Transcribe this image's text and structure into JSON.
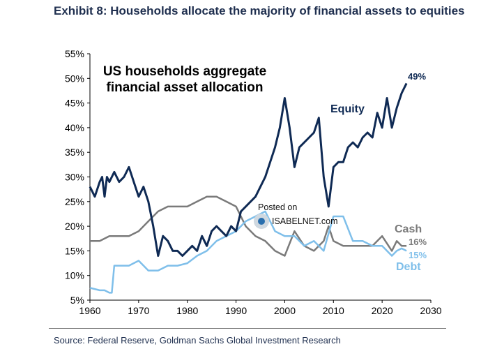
{
  "title": "Exhibit 8: Households allocate the majority of financial assets to equities",
  "source": "Source: Federal Reserve, Goldman Sachs Global Investment Research",
  "watermark": {
    "line1": "Posted on",
    "line2": "ISABELNET.com"
  },
  "colors": {
    "equity": "#0f2a54",
    "cash": "#7a7a7a",
    "debt": "#7fbfea",
    "title": "#1f2f4f"
  },
  "chart_data": {
    "type": "line",
    "title": "US households aggregate financial asset allocation",
    "title_lines": [
      "US households aggregate",
      "financial asset allocation"
    ],
    "xlabel": "",
    "ylabel": "",
    "xlim": [
      1960,
      2030
    ],
    "ylim": [
      5,
      55
    ],
    "x_ticks": [
      1960,
      1970,
      1980,
      1990,
      2000,
      2010,
      2020,
      2030
    ],
    "x_tick_labels": [
      "1960",
      "1970",
      "1980",
      "1990",
      "2000",
      "2010",
      "2020",
      "2030"
    ],
    "y_ticks": [
      5,
      10,
      15,
      20,
      25,
      30,
      35,
      40,
      45,
      50,
      55
    ],
    "y_tick_labels": [
      "5%",
      "10%",
      "15%",
      "20%",
      "25%",
      "30%",
      "35%",
      "40%",
      "45%",
      "50%",
      "55%"
    ],
    "grid": false,
    "series": [
      {
        "name": "Equity",
        "end_label": "49%",
        "color": "#0f2a54",
        "x": [
          1960,
          1961,
          1962,
          1962.5,
          1963,
          1963.5,
          1964,
          1965,
          1966,
          1967,
          1968,
          1969,
          1970,
          1971,
          1972,
          1973,
          1974,
          1975,
          1976,
          1977,
          1978,
          1979,
          1980,
          1981,
          1982,
          1983,
          1984,
          1985,
          1986,
          1987,
          1988,
          1989,
          1990,
          1991,
          1992,
          1993,
          1994,
          1995,
          1996,
          1997,
          1998,
          1999,
          2000,
          2001,
          2002,
          2003,
          2004,
          2005,
          2006,
          2007,
          2008,
          2009,
          2010,
          2011,
          2012,
          2013,
          2014,
          2015,
          2016,
          2017,
          2018,
          2019,
          2020,
          2021,
          2022,
          2023,
          2024,
          2025
        ],
        "values": [
          28,
          26,
          29,
          30,
          26,
          30,
          29,
          31,
          29,
          30,
          32,
          29,
          26,
          28,
          25,
          20,
          14,
          18,
          17,
          15,
          15,
          14,
          15,
          16,
          15,
          18,
          16,
          19,
          20,
          19,
          18,
          20,
          19,
          23,
          24,
          25,
          26,
          28,
          30,
          33,
          36,
          40,
          46,
          40,
          32,
          36,
          37,
          38,
          39,
          42,
          30,
          24,
          32,
          33,
          33,
          36,
          37,
          36,
          38,
          39,
          38,
          43,
          40,
          46,
          40,
          44,
          47,
          49
        ]
      },
      {
        "name": "Cash",
        "end_label": "16%",
        "color": "#7a7a7a",
        "x": [
          1960,
          1962,
          1964,
          1966,
          1968,
          1970,
          1972,
          1974,
          1976,
          1978,
          1980,
          1982,
          1984,
          1986,
          1988,
          1990,
          1992,
          1994,
          1996,
          1998,
          2000,
          2002,
          2004,
          2006,
          2008,
          2009,
          2010,
          2012,
          2014,
          2016,
          2018,
          2020,
          2022,
          2023,
          2024,
          2025
        ],
        "values": [
          17,
          17,
          18,
          18,
          18,
          19,
          21,
          23,
          24,
          24,
          24,
          25,
          26,
          26,
          25,
          24,
          20,
          18,
          17,
          15,
          14,
          19,
          16,
          15,
          17,
          20,
          17,
          16,
          16,
          16,
          16,
          18,
          15,
          17,
          16,
          16
        ]
      },
      {
        "name": "Debt",
        "end_label": "15%",
        "color": "#7fbfea",
        "x": [
          1960,
          1962,
          1963,
          1964,
          1964.5,
          1965,
          1966,
          1968,
          1970,
          1972,
          1974,
          1976,
          1978,
          1980,
          1982,
          1984,
          1986,
          1988,
          1990,
          1992,
          1994,
          1996,
          1998,
          2000,
          2002,
          2004,
          2006,
          2008,
          2010,
          2012,
          2014,
          2016,
          2018,
          2020,
          2021,
          2022,
          2023,
          2024,
          2025
        ],
        "values": [
          7.5,
          7,
          7,
          6.5,
          6.5,
          12,
          12,
          12,
          13,
          11,
          11,
          12,
          12,
          12.5,
          14,
          15,
          17,
          18,
          19,
          21,
          22,
          23,
          19,
          18,
          18,
          16,
          17,
          15,
          22,
          22,
          17,
          17,
          16,
          16,
          15,
          14,
          15,
          15.5,
          15
        ]
      }
    ]
  }
}
